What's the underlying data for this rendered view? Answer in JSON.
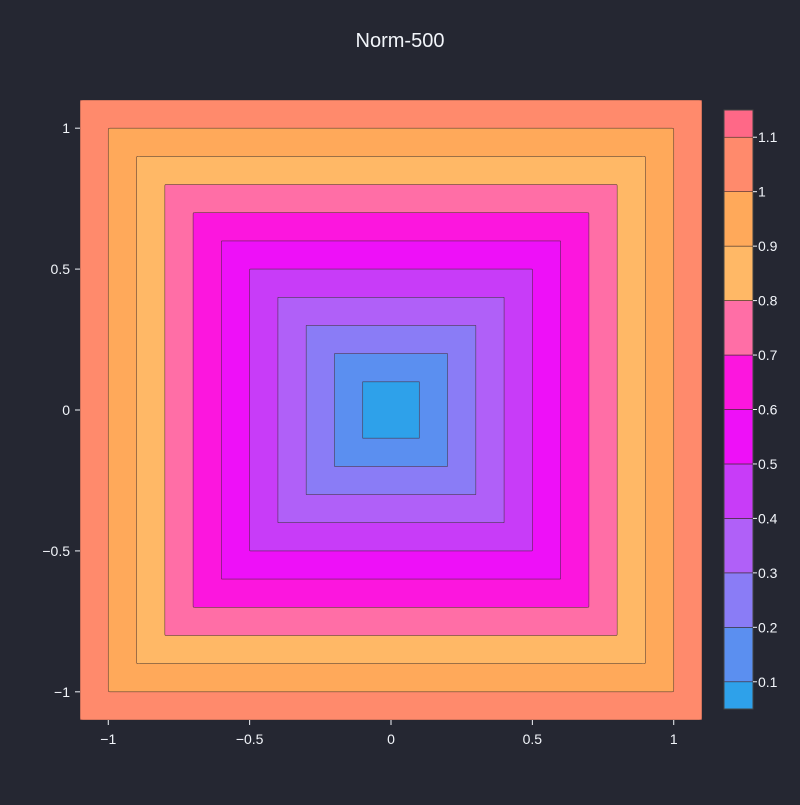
{
  "chart_data": {
    "type": "contour",
    "title": "Norm-500",
    "xlabel": "",
    "ylabel": "",
    "xlim": [
      -1.1,
      1.1
    ],
    "ylim": [
      -1.1,
      1.1
    ],
    "x_ticks": [
      -1,
      -0.5,
      0,
      0.5,
      1
    ],
    "x_tick_labels": [
      "−1",
      "−0.5",
      "0",
      "0.5",
      "1"
    ],
    "y_ticks": [
      -1,
      -0.5,
      0,
      0.5,
      1
    ],
    "y_tick_labels": [
      "−1",
      "−0.5",
      "0",
      "0.5",
      "1"
    ],
    "function": "(|x|^500 + |y|^500)^(1/500)",
    "contour_levels": [
      0.1,
      0.2,
      0.3,
      0.4,
      0.5,
      0.6,
      0.7,
      0.8,
      0.9,
      1.0,
      1.1
    ],
    "z_range": [
      0.05,
      1.15
    ],
    "colorbar": {
      "position": "right",
      "tick_values": [
        0.1,
        0.2,
        0.3,
        0.4,
        0.5,
        0.6,
        0.7,
        0.8,
        0.9,
        1,
        1.1
      ],
      "tick_labels": [
        "0.1",
        "0.2",
        "0.3",
        "0.4",
        "0.5",
        "0.6",
        "0.7",
        "0.8",
        "0.9",
        "1",
        "1.1"
      ]
    },
    "band_colors": [
      "#2ea1ea",
      "#5b8ff0",
      "#8a7cf6",
      "#b060f8",
      "#c83cf8",
      "#ee10f8",
      "#fc16de",
      "#ff6ea6",
      "#ffb866",
      "#ffa95a",
      "#ff8a6c",
      "#ff6887"
    ],
    "grid": false
  },
  "colors": {
    "background": "#252732",
    "text": "#f2f5fa",
    "contour_line": "#3b2a2a"
  }
}
